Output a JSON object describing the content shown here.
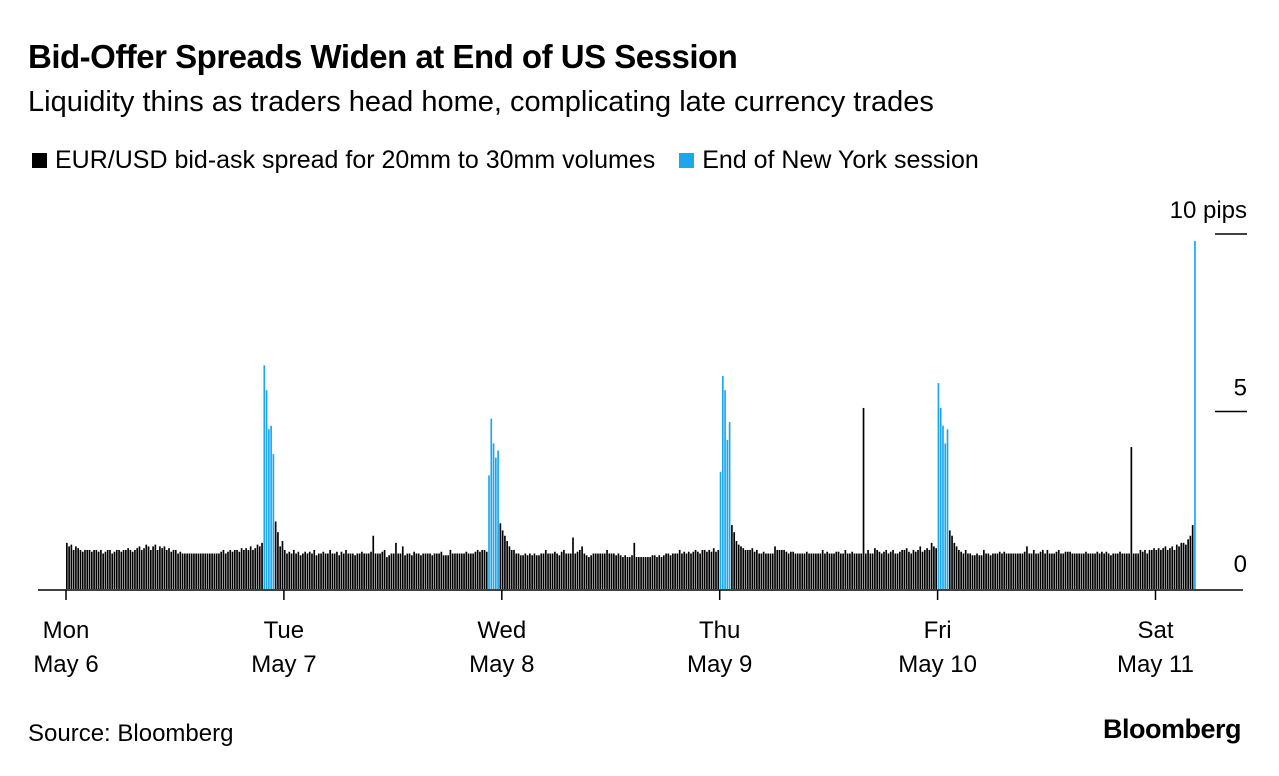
{
  "title": "Bid-Offer Spreads Widen at End of US Session",
  "subtitle": "Liquidity thins as traders head home, complicating late currency trades",
  "legend": [
    {
      "label": "EUR/USD bid-ask spread for 20mm to 30mm volumes",
      "color": "#000000"
    },
    {
      "label": "End of New York session",
      "color": "#1aa7ec"
    }
  ],
  "source": "Source: Bloomberg",
  "brand": "Bloomberg",
  "chart_data": {
    "type": "bar",
    "title": "Bid-Offer Spreads Widen at End of US Session",
    "ylabel": "pips",
    "ylim": [
      0,
      10
    ],
    "y_ticks": [
      {
        "value": 10,
        "label": "10 pips"
      },
      {
        "value": 5,
        "label": "5"
      },
      {
        "value": 0,
        "label": "0"
      }
    ],
    "x_ticks": [
      {
        "day": 0,
        "label1": "Mon",
        "label2": "May 6"
      },
      {
        "day": 1,
        "label1": "Tue",
        "label2": "May 7"
      },
      {
        "day": 2,
        "label1": "Wed",
        "label2": "May 8"
      },
      {
        "day": 3,
        "label1": "Thu",
        "label2": "May 9"
      },
      {
        "day": 4,
        "label1": "Fri",
        "label2": "May 10"
      },
      {
        "day": 5,
        "label1": "Sat",
        "label2": "May 11"
      }
    ],
    "series": [
      {
        "name": "EUR/USD bid-ask spread for 20mm to 30mm volumes",
        "color": "#000000",
        "bucket_hours": 0.25,
        "points_per_day": 96,
        "values": [
          1.3,
          1.2,
          1.25,
          1.1,
          1.2,
          1.15,
          1.1,
          1.05,
          1.1,
          1.1,
          1.1,
          1.05,
          1.1,
          1.1,
          1.05,
          1.1,
          1.0,
          1.05,
          1.1,
          1.1,
          1.0,
          1.05,
          1.1,
          1.1,
          1.05,
          1.1,
          1.1,
          1.15,
          1.1,
          1.05,
          1.1,
          1.15,
          1.2,
          1.1,
          1.15,
          1.25,
          1.2,
          1.1,
          1.2,
          1.25,
          1.1,
          1.2,
          1.15,
          1.2,
          1.1,
          1.15,
          1.05,
          1.1,
          1.1,
          1.0,
          1.05,
          1.0,
          1.0,
          1.0,
          1.0,
          1.0,
          1.0,
          1.0,
          1.0,
          1.0,
          1.0,
          1.0,
          1.0,
          1.0,
          1.0,
          1.0,
          1.0,
          1.0,
          1.05,
          1.1,
          1.0,
          1.05,
          1.1,
          1.05,
          1.1,
          1.1,
          1.05,
          1.15,
          1.1,
          1.15,
          1.1,
          1.2,
          1.1,
          1.15,
          1.25,
          1.2,
          1.3,
          6.3,
          5.6,
          4.5,
          4.6,
          3.8,
          1.9,
          1.6,
          1.2,
          1.35,
          1.1,
          1.0,
          1.05,
          1.0,
          1.1,
          1.0,
          1.05,
          0.95,
          1.0,
          1.05,
          1.0,
          1.05,
          1.0,
          1.1,
          0.95,
          1.0,
          1.0,
          1.05,
          1.0,
          1.0,
          1.1,
          1.0,
          1.0,
          1.05,
          0.95,
          1.05,
          1.0,
          1.1,
          1.0,
          1.0,
          1.0,
          0.95,
          1.0,
          1.0,
          1.05,
          1.0,
          1.0,
          1.0,
          1.05,
          1.5,
          1.0,
          1.0,
          1.0,
          1.05,
          1.1,
          0.9,
          0.95,
          1.0,
          1.0,
          1.3,
          1.0,
          1.0,
          1.2,
          0.95,
          1.0,
          1.0,
          0.95,
          1.05,
          1.0,
          1.0,
          0.95,
          1.0,
          1.0,
          1.0,
          1.0,
          0.95,
          1.0,
          1.0,
          1.0,
          1.05,
          0.95,
          0.95,
          0.95,
          1.1,
          1.0,
          1.0,
          1.0,
          1.0,
          1.0,
          1.0,
          1.05,
          1.0,
          1.0,
          1.0,
          1.05,
          1.1,
          1.05,
          1.1,
          1.1,
          1.05,
          3.2,
          4.8,
          4.1,
          3.7,
          3.9,
          1.85,
          1.65,
          1.5,
          1.35,
          1.2,
          1.1,
          1.1,
          1.0,
          1.0,
          0.95,
          0.95,
          1.0,
          0.95,
          1.0,
          0.95,
          1.0,
          0.95,
          0.95,
          1.0,
          1.0,
          1.1,
          1.0,
          1.0,
          1.0,
          1.05,
          1.0,
          0.95,
          1.05,
          1.1,
          1.0,
          1.0,
          1.0,
          1.45,
          1.0,
          1.05,
          1.1,
          1.2,
          1.0,
          0.95,
          0.9,
          0.95,
          1.0,
          1.0,
          1.0,
          1.0,
          1.0,
          1.0,
          1.1,
          1.0,
          1.0,
          1.0,
          0.95,
          1.0,
          0.95,
          0.9,
          0.95,
          0.9,
          0.9,
          0.95,
          1.3,
          0.9,
          0.9,
          0.9,
          0.9,
          0.9,
          0.9,
          0.9,
          0.95,
          0.95,
          0.9,
          0.95,
          0.9,
          0.95,
          1.0,
          1.0,
          0.95,
          1.0,
          1.0,
          1.0,
          1.1,
          1.0,
          1.05,
          1.0,
          1.05,
          1.0,
          1.05,
          1.1,
          1.05,
          1.0,
          1.1,
          1.1,
          1.05,
          1.1,
          1.05,
          1.15,
          1.05,
          1.1,
          3.3,
          6.0,
          5.6,
          4.2,
          4.7,
          1.8,
          1.6,
          1.35,
          1.25,
          1.2,
          1.15,
          1.1,
          1.1,
          1.1,
          1.15,
          1.05,
          1.1,
          1.0,
          1.0,
          1.05,
          1.0,
          1.0,
          1.0,
          1.0,
          1.2,
          1.1,
          1.1,
          1.1,
          1.1,
          1.05,
          1.0,
          1.05,
          1.05,
          1.0,
          1.0,
          1.0,
          1.0,
          1.0,
          1.05,
          1.0,
          1.0,
          1.0,
          1.0,
          1.0,
          1.0,
          1.1,
          1.0,
          1.05,
          1.0,
          1.0,
          1.0,
          1.05,
          1.05,
          1.0,
          1.0,
          1.1,
          1.0,
          1.0,
          1.05,
          1.0,
          1.0,
          1.0,
          1.0,
          5.1,
          1.0,
          1.1,
          1.0,
          1.0,
          1.15,
          1.1,
          1.05,
          1.0,
          1.05,
          1.1,
          1.0,
          1.05,
          1.1,
          1.0,
          1.0,
          1.05,
          1.1,
          1.1,
          1.15,
          1.05,
          1.0,
          1.1,
          1.05,
          1.1,
          1.2,
          1.05,
          1.1,
          1.15,
          1.1,
          1.3,
          1.2,
          1.15,
          5.8,
          5.1,
          4.6,
          4.1,
          4.5,
          1.65,
          1.5,
          1.3,
          1.2,
          1.1,
          1.05,
          1.0,
          1.1,
          1.0,
          1.0,
          0.95,
          0.95,
          1.0,
          0.95,
          0.95,
          1.1,
          1.0,
          1.0,
          0.95,
          1.0,
          1.0,
          1.0,
          1.05,
          1.0,
          1.05,
          1.0,
          1.0,
          1.0,
          1.0,
          1.0,
          1.0,
          1.0,
          1.0,
          1.05,
          1.2,
          1.0,
          1.0,
          1.1,
          1.0,
          1.0,
          1.05,
          1.1,
          1.0,
          1.1,
          1.0,
          1.0,
          1.0,
          1.05,
          1.1,
          1.0,
          1.0,
          1.05,
          1.05,
          1.05,
          1.0,
          1.0,
          1.0,
          1.0,
          1.0,
          1.0,
          1.05,
          1.0,
          1.0,
          1.0,
          1.0,
          1.05,
          1.0,
          1.05,
          1.0,
          1.05,
          1.0,
          0.95,
          1.0,
          1.0,
          1.0,
          1.05,
          1.0,
          1.0,
          1.0,
          1.0,
          4.0,
          1.0,
          1.0,
          1.0,
          1.1,
          1.05,
          1.1,
          1.0,
          1.1,
          1.1,
          1.15,
          1.1,
          1.15,
          1.1,
          1.15,
          1.2,
          1.1,
          1.15,
          1.2,
          1.1,
          1.25,
          1.2,
          1.3,
          1.3,
          1.25,
          1.4,
          1.5,
          1.8
        ]
      },
      {
        "name": "End of New York session",
        "color": "#1aa7ec",
        "note": "Bars falling in the late-NY-session window each day plus the final bar",
        "highlight_days": [
          {
            "day": 0,
            "from_index": 87,
            "to_index": 91
          },
          {
            "day": 1,
            "from_index": 90,
            "to_index": 94
          },
          {
            "day": 3,
            "from_index": 0,
            "to_index": 4
          },
          {
            "day": 4,
            "from_index": 0,
            "to_index": 4
          },
          {
            "day": 5,
            "from_index": 17,
            "to_index": 17
          }
        ],
        "final_value": 9.8
      }
    ]
  }
}
